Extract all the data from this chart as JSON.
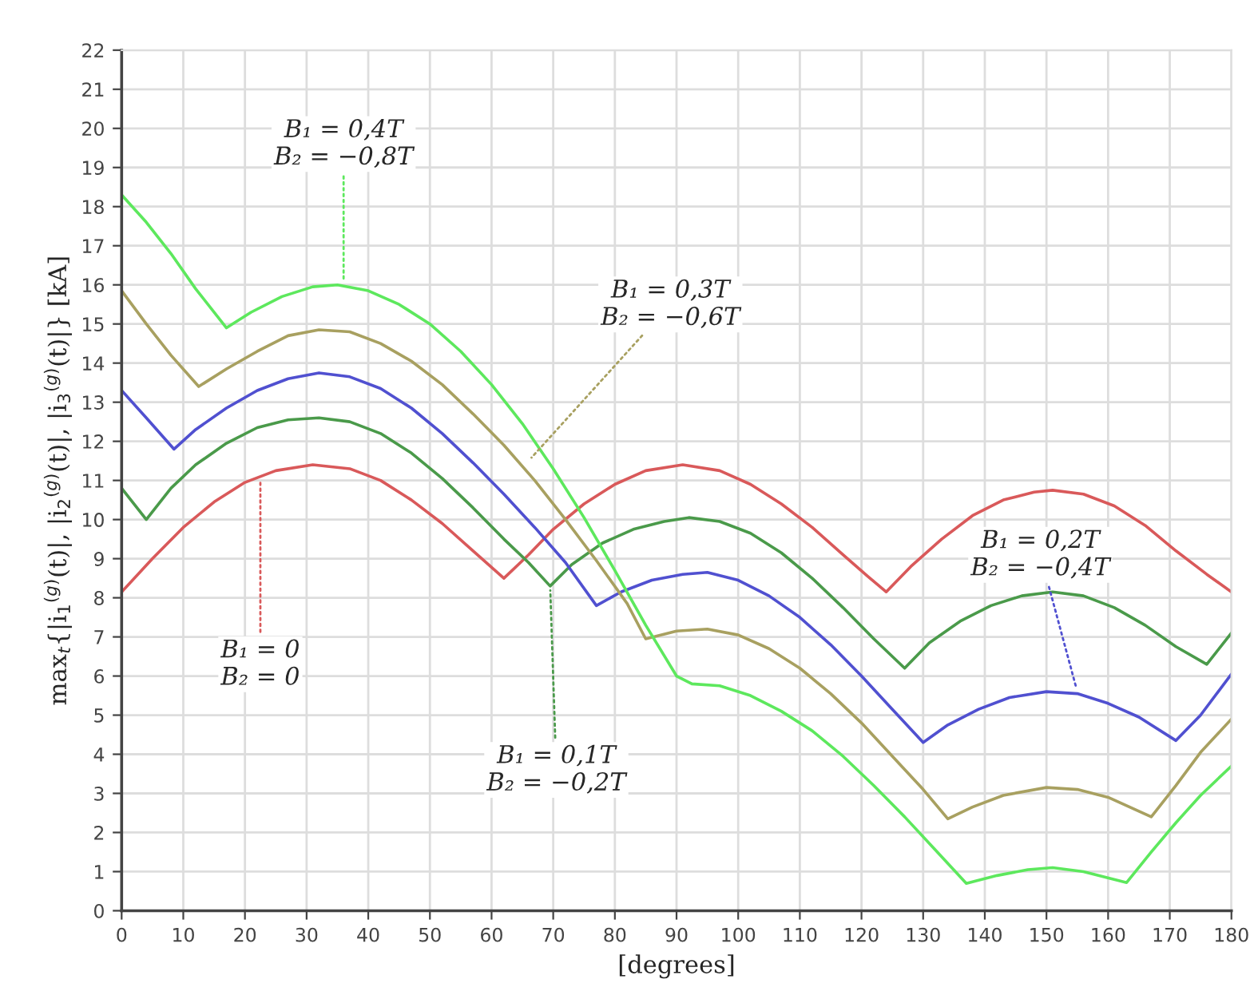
{
  "chart_data": {
    "type": "line",
    "xlabel": "[degrees]",
    "ylabel": "max$_{t}${|i$_{1}$$^{(g)}$(t)|, |i$_{2}$$^{(g)}$(t)|, |i$_{3}$$^{(g)}$(t)|} [kA]",
    "xlim": [
      0,
      180
    ],
    "ylim": [
      0,
      22
    ],
    "xticks": [
      0,
      10,
      20,
      30,
      40,
      50,
      60,
      70,
      80,
      90,
      100,
      110,
      120,
      130,
      140,
      150,
      160,
      170,
      180
    ],
    "yticks": [
      0,
      1,
      2,
      3,
      4,
      5,
      6,
      7,
      8,
      9,
      10,
      11,
      12,
      13,
      14,
      15,
      16,
      17,
      18,
      19,
      20,
      21,
      22
    ],
    "grid": true,
    "marker": "none",
    "line_style": "solid",
    "series": [
      {
        "color": "#d9595a",
        "x": [
          0,
          5,
          10,
          15,
          20,
          25,
          31,
          37,
          42,
          47,
          52,
          57,
          62,
          66,
          70,
          75,
          80,
          85,
          91,
          97,
          102,
          107,
          112,
          117,
          121,
          124,
          128,
          133,
          138,
          143,
          148,
          151,
          156,
          161,
          166,
          171,
          176,
          180
        ],
        "values": [
          8.15,
          9.0,
          9.8,
          10.45,
          10.95,
          11.25,
          11.4,
          11.3,
          11.0,
          10.5,
          9.9,
          9.2,
          8.5,
          9.1,
          9.75,
          10.4,
          10.9,
          11.25,
          11.4,
          11.25,
          10.9,
          10.4,
          9.8,
          9.1,
          8.55,
          8.15,
          8.8,
          9.5,
          10.1,
          10.5,
          10.7,
          10.75,
          10.65,
          10.35,
          9.85,
          9.2,
          8.6,
          8.15
        ]
      },
      {
        "color": "#4a9a4a",
        "x": [
          0,
          4,
          8,
          12,
          17,
          22,
          27,
          32,
          37,
          42,
          47,
          52,
          57,
          62,
          66,
          69.5,
          73,
          78,
          83,
          88,
          92,
          97,
          102,
          107,
          112,
          117,
          122,
          127,
          131,
          136,
          141,
          146,
          151,
          156,
          161,
          166,
          171,
          176,
          180
        ],
        "values": [
          10.8,
          10.0,
          10.8,
          11.4,
          11.95,
          12.35,
          12.55,
          12.6,
          12.5,
          12.2,
          11.7,
          11.05,
          10.3,
          9.5,
          8.9,
          8.3,
          8.85,
          9.4,
          9.75,
          9.95,
          10.05,
          9.95,
          9.65,
          9.15,
          8.5,
          7.75,
          6.95,
          6.2,
          6.85,
          7.4,
          7.8,
          8.05,
          8.15,
          8.05,
          7.75,
          7.3,
          6.75,
          6.3,
          7.1
        ]
      },
      {
        "color": "#5050d0",
        "x": [
          0,
          4,
          8.5,
          12,
          17,
          22,
          27,
          32,
          37,
          42,
          47,
          52,
          57,
          62,
          67,
          72,
          77,
          81,
          86,
          91,
          95,
          100,
          105,
          110,
          115,
          120,
          125,
          130,
          134,
          139,
          144,
          150,
          155,
          160,
          165,
          171,
          175,
          180
        ],
        "values": [
          13.3,
          12.6,
          11.8,
          12.3,
          12.85,
          13.3,
          13.6,
          13.75,
          13.65,
          13.35,
          12.85,
          12.2,
          11.45,
          10.65,
          9.8,
          8.9,
          7.8,
          8.15,
          8.45,
          8.6,
          8.65,
          8.45,
          8.05,
          7.5,
          6.8,
          6.0,
          5.15,
          4.3,
          4.75,
          5.15,
          5.45,
          5.6,
          5.55,
          5.3,
          4.95,
          4.35,
          5.0,
          6.05
        ]
      },
      {
        "color": "#a8a060",
        "x": [
          0,
          4,
          8,
          12.5,
          17,
          22,
          27,
          32,
          37,
          42,
          47,
          52,
          57,
          62,
          67,
          72,
          77,
          82,
          85,
          90,
          95,
          100,
          105,
          110,
          115,
          120,
          125,
          130,
          134,
          138,
          143,
          150,
          155,
          160,
          167,
          171,
          175,
          180
        ],
        "values": [
          15.85,
          15.0,
          14.2,
          13.4,
          13.85,
          14.3,
          14.7,
          14.85,
          14.8,
          14.5,
          14.05,
          13.45,
          12.7,
          11.9,
          11.0,
          10.0,
          8.95,
          7.85,
          6.95,
          7.15,
          7.2,
          7.05,
          6.7,
          6.2,
          5.55,
          4.8,
          3.95,
          3.1,
          2.35,
          2.65,
          2.95,
          3.15,
          3.1,
          2.9,
          2.4,
          3.2,
          4.05,
          4.9
        ]
      },
      {
        "color": "#5de85d",
        "x": [
          0,
          4,
          8,
          12,
          17,
          21,
          26,
          31,
          35,
          40,
          45,
          50,
          55,
          60,
          65,
          70,
          75,
          80,
          85,
          90,
          92.5,
          97,
          102,
          107,
          112,
          117,
          122,
          127,
          132,
          137,
          142,
          147,
          151,
          156,
          163,
          167,
          171,
          175,
          180
        ],
        "values": [
          18.3,
          17.6,
          16.8,
          15.9,
          14.9,
          15.3,
          15.7,
          15.95,
          16.0,
          15.85,
          15.5,
          15.0,
          14.3,
          13.45,
          12.45,
          11.3,
          10.05,
          8.7,
          7.3,
          6.0,
          5.8,
          5.75,
          5.5,
          5.1,
          4.6,
          3.95,
          3.2,
          2.4,
          1.55,
          0.7,
          0.9,
          1.05,
          1.1,
          1.0,
          0.72,
          1.5,
          2.25,
          2.95,
          3.7
        ]
      }
    ],
    "annotations": [
      {
        "text": "B₁ = 0,4T\nB₂ = −0,8T",
        "x": 36,
        "y": 16.0
      },
      {
        "text": "B₁ = 0,3T\nB₂ = −0,6T",
        "x": 66,
        "y": 11.5
      },
      {
        "text": "B₁ = 0,2T\nB₂ = −0,4T",
        "x": 155,
        "y": 5.6
      },
      {
        "text": "B₁ = 0\nB₂ = 0",
        "x": 22.5,
        "y": 11.1
      },
      {
        "text": "B₁ = 0,1T\nB₂ = −0,2T",
        "x": 69.5,
        "y": 8.3
      }
    ]
  }
}
